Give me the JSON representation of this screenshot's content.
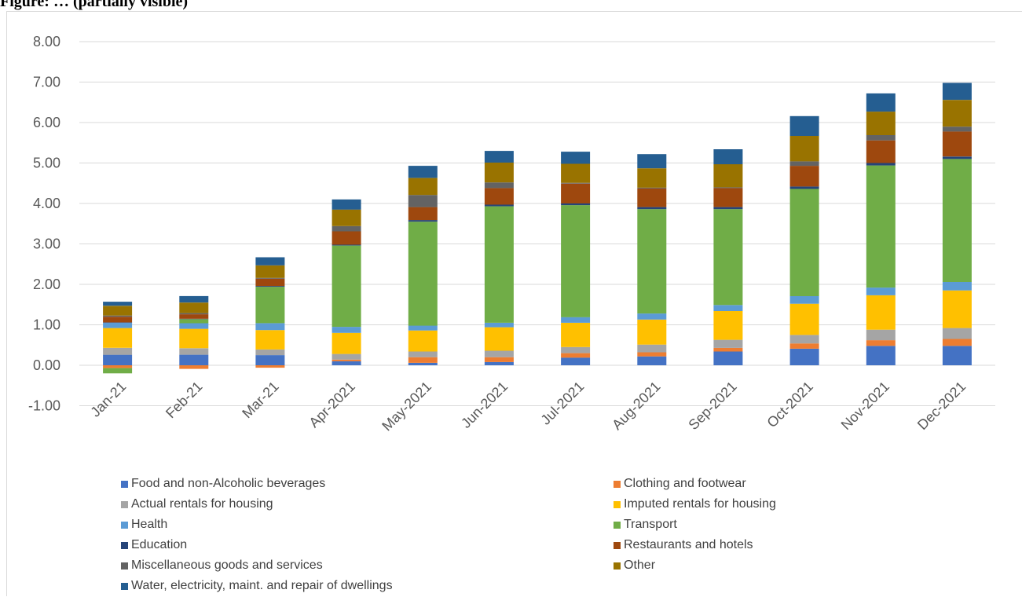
{
  "title": "Figure: … (partially visible)",
  "chart_data": {
    "type": "bar",
    "stacked": true,
    "title": "",
    "xlabel": "",
    "ylabel": "",
    "ylim": [
      -1,
      8
    ],
    "yticks": [
      "-1.00",
      "0.00",
      "1.00",
      "2.00",
      "3.00",
      "4.00",
      "5.00",
      "6.00",
      "7.00",
      "8.00"
    ],
    "grid": true,
    "legend_position": "bottom",
    "categories": [
      "Jan-21",
      "Feb-21",
      "Mar-21",
      "Apr-2021",
      "May-2021",
      "Jun-2021",
      "Jul-2021",
      "Aug-2021",
      "Sep-2021",
      "Oct-2021",
      "Nov-2021",
      "Dec-2021"
    ],
    "series": [
      {
        "name": "Food and non-Alcoholic beverages",
        "color": "#4472c4",
        "values": [
          0.26,
          0.26,
          0.25,
          0.1,
          0.06,
          0.08,
          0.19,
          0.22,
          0.34,
          0.41,
          0.48,
          0.48
        ]
      },
      {
        "name": "Clothing and footwear",
        "color": "#ed7d31",
        "values": [
          -0.07,
          -0.09,
          -0.06,
          0.04,
          0.14,
          0.12,
          0.11,
          0.1,
          0.09,
          0.13,
          0.14,
          0.17
        ]
      },
      {
        "name": "Actual rentals for housing",
        "color": "#a5a5a5",
        "values": [
          0.17,
          0.16,
          0.14,
          0.14,
          0.14,
          0.16,
          0.15,
          0.19,
          0.2,
          0.21,
          0.26,
          0.27
        ]
      },
      {
        "name": "Imputed rentals for housing",
        "color": "#ffc000",
        "values": [
          0.49,
          0.48,
          0.48,
          0.52,
          0.52,
          0.58,
          0.6,
          0.62,
          0.71,
          0.77,
          0.85,
          0.93
        ]
      },
      {
        "name": "Health",
        "color": "#5b9bd5",
        "values": [
          0.13,
          0.14,
          0.17,
          0.15,
          0.12,
          0.11,
          0.14,
          0.15,
          0.15,
          0.19,
          0.19,
          0.21
        ]
      },
      {
        "name": "Transport",
        "color": "#70ad47",
        "values": [
          -0.13,
          0.1,
          0.9,
          2.01,
          2.57,
          2.88,
          2.77,
          2.58,
          2.37,
          2.65,
          3.02,
          3.04
        ]
      },
      {
        "name": "Education",
        "color": "#264478",
        "values": [
          0.01,
          0.01,
          0.02,
          0.02,
          0.04,
          0.04,
          0.04,
          0.05,
          0.05,
          0.06,
          0.06,
          0.06
        ]
      },
      {
        "name": "Restaurants and hotels",
        "color": "#9e480e",
        "values": [
          0.14,
          0.11,
          0.18,
          0.33,
          0.32,
          0.41,
          0.49,
          0.46,
          0.47,
          0.51,
          0.56,
          0.62
        ]
      },
      {
        "name": "Miscellaneous goods and services",
        "color": "#636363",
        "values": [
          0.03,
          0.03,
          0.02,
          0.13,
          0.3,
          0.14,
          0.02,
          0.02,
          0.02,
          0.11,
          0.13,
          0.12
        ]
      },
      {
        "name": "Other",
        "color": "#997300",
        "values": [
          0.24,
          0.26,
          0.31,
          0.41,
          0.42,
          0.49,
          0.47,
          0.48,
          0.57,
          0.63,
          0.58,
          0.66
        ]
      },
      {
        "name": "Water, electricity, maint. and repair of dwellings",
        "color": "#255e91",
        "values": [
          0.1,
          0.16,
          0.2,
          0.25,
          0.3,
          0.29,
          0.3,
          0.35,
          0.37,
          0.49,
          0.45,
          0.42
        ]
      }
    ]
  }
}
